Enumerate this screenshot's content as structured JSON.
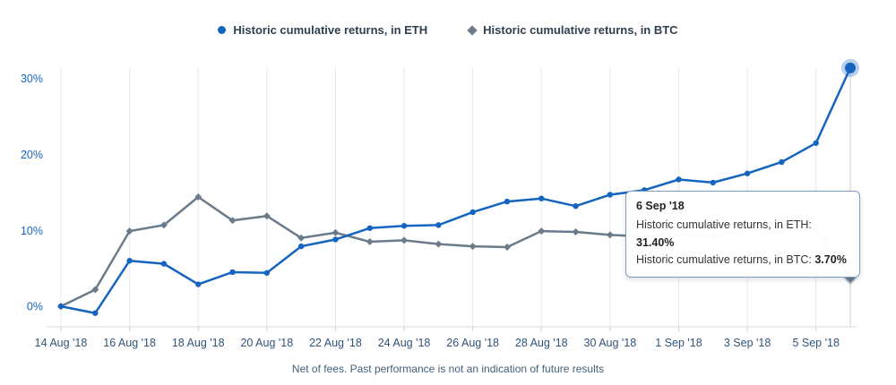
{
  "footer": {
    "note": "Net of fees. Past performance is not an indication of future results"
  },
  "tooltip": {
    "date": "6 Sep '18",
    "rows": [
      {
        "label": "Historic cumulative returns, in ETH: ",
        "value": "31.40%"
      },
      {
        "label": "Historic cumulative returns, in BTC: ",
        "value": "3.70%"
      }
    ]
  },
  "chart_data": {
    "type": "line",
    "title": "",
    "xlabel": "",
    "ylabel": "",
    "grid": "vertical-only",
    "legend_position": "top-center",
    "ylim": [
      -2.7,
      31.5
    ],
    "yticks": [
      0,
      10,
      20,
      30
    ],
    "ytick_labels": [
      "0%",
      "10%",
      "20%",
      "30%"
    ],
    "x": [
      "14 Aug '18",
      "15 Aug '18",
      "16 Aug '18",
      "17 Aug '18",
      "18 Aug '18",
      "19 Aug '18",
      "20 Aug '18",
      "21 Aug '18",
      "22 Aug '18",
      "23 Aug '18",
      "24 Aug '18",
      "25 Aug '18",
      "26 Aug '18",
      "27 Aug '18",
      "28 Aug '18",
      "29 Aug '18",
      "30 Aug '18",
      "31 Aug '18",
      "1 Sep '18",
      "2 Sep '18",
      "3 Sep '18",
      "4 Sep '18",
      "5 Sep '18",
      "6 Sep '18"
    ],
    "x_tick_indices": [
      0,
      2,
      4,
      6,
      8,
      10,
      12,
      14,
      16,
      18,
      20,
      22
    ],
    "x_tick_labels": [
      "14 Aug '18",
      "16 Aug '18",
      "18 Aug '18",
      "20 Aug '18",
      "22 Aug '18",
      "24 Aug '18",
      "26 Aug '18",
      "28 Aug '18",
      "30 Aug '18",
      "1 Sep '18",
      "3 Sep '18",
      "5 Sep '18"
    ],
    "series": [
      {
        "name": "Historic cumulative returns, in ETH",
        "color": "#1565c0",
        "marker": "circle",
        "values": [
          0,
          -0.9,
          6.0,
          5.6,
          2.9,
          4.5,
          4.4,
          7.9,
          8.8,
          10.3,
          10.6,
          10.7,
          12.4,
          13.8,
          14.2,
          13.2,
          14.7,
          15.3,
          16.7,
          16.3,
          17.5,
          19.0,
          21.5,
          31.4
        ]
      },
      {
        "name": "Historic cumulative returns, in BTC",
        "color": "#6b7b8a",
        "marker": "diamond",
        "values": [
          0,
          2.2,
          9.9,
          10.7,
          14.4,
          11.3,
          11.9,
          9.0,
          9.7,
          8.5,
          8.7,
          8.2,
          7.9,
          7.8,
          9.9,
          9.8,
          9.4,
          9.2,
          9.5,
          9.3,
          10.0,
          9.8,
          10.2,
          3.7
        ]
      }
    ],
    "axis_colors": {
      "y_labels": "#1565c0",
      "x_labels": "#2f5478",
      "gridline": "#e7e9ec",
      "axis_line": "#d6dbe1",
      "crosshair": "#c9d0d8"
    }
  }
}
